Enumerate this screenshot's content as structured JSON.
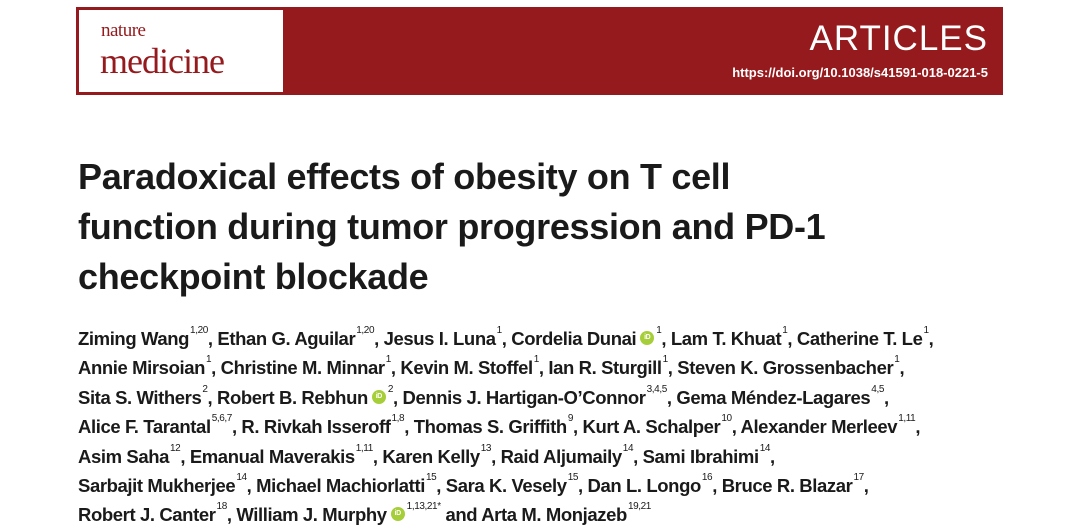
{
  "header": {
    "journal_line1": "nature",
    "journal_line2": "medicine",
    "section": "ARTICLES",
    "doi": "https://doi.org/10.1038/s41591-018-0221-5",
    "brand_color": "#951a1d"
  },
  "title_lines": [
    "Paradoxical effects of obesity on T cell",
    "function during tumor progression and PD-1",
    "checkpoint blockade"
  ],
  "author_lines": [
    [
      {
        "name": "Ziming Wang",
        "sup": "1,20"
      },
      {
        "name": "Ethan G. Aguilar",
        "sup": "1,20"
      },
      {
        "name": "Jesus I. Luna",
        "sup": "1"
      },
      {
        "name": "Cordelia Dunai",
        "sup": "1",
        "orcid": true
      },
      {
        "name": "Lam T. Khuat",
        "sup": "1"
      },
      {
        "name": "Catherine T. Le",
        "sup": "1"
      }
    ],
    [
      {
        "name": "Annie Mirsoian",
        "sup": "1"
      },
      {
        "name": "Christine M. Minnar",
        "sup": "1"
      },
      {
        "name": "Kevin M. Stoffel",
        "sup": "1"
      },
      {
        "name": "Ian R. Sturgill",
        "sup": "1"
      },
      {
        "name": "Steven K. Grossenbacher",
        "sup": "1"
      }
    ],
    [
      {
        "name": "Sita S. Withers",
        "sup": "2"
      },
      {
        "name": "Robert B. Rebhun",
        "sup": "2",
        "orcid": true
      },
      {
        "name": "Dennis J. Hartigan-O’Connor",
        "sup": "3,4,5"
      },
      {
        "name": "Gema Méndez-Lagares",
        "sup": "4,5"
      }
    ],
    [
      {
        "name": "Alice F. Tarantal",
        "sup": "5,6,7"
      },
      {
        "name": "R. Rivkah Isseroff",
        "sup": "1,8"
      },
      {
        "name": "Thomas S. Griffith",
        "sup": "9"
      },
      {
        "name": "Kurt A. Schalper",
        "sup": "10"
      },
      {
        "name": "Alexander Merleev",
        "sup": "1,11"
      }
    ],
    [
      {
        "name": "Asim Saha",
        "sup": "12"
      },
      {
        "name": "Emanual Maverakis",
        "sup": "1,11"
      },
      {
        "name": "Karen Kelly",
        "sup": "13"
      },
      {
        "name": "Raid Aljumaily",
        "sup": "14"
      },
      {
        "name": "Sami Ibrahimi",
        "sup": "14"
      }
    ],
    [
      {
        "name": "Sarbajit Mukherjee",
        "sup": "14"
      },
      {
        "name": "Michael Machiorlatti",
        "sup": "15"
      },
      {
        "name": "Sara K. Vesely",
        "sup": "15"
      },
      {
        "name": "Dan L. Longo",
        "sup": "16"
      },
      {
        "name": "Bruce R. Blazar",
        "sup": "17"
      }
    ],
    [
      {
        "name": "Robert J. Canter",
        "sup": "18"
      },
      {
        "name": "William J. Murphy",
        "sup": "1,13,21*",
        "orcid": true,
        "joiner": " and "
      },
      {
        "name": "Arta M. Monjazeb",
        "sup": "19,21"
      }
    ]
  ],
  "orcid_label": "iD"
}
